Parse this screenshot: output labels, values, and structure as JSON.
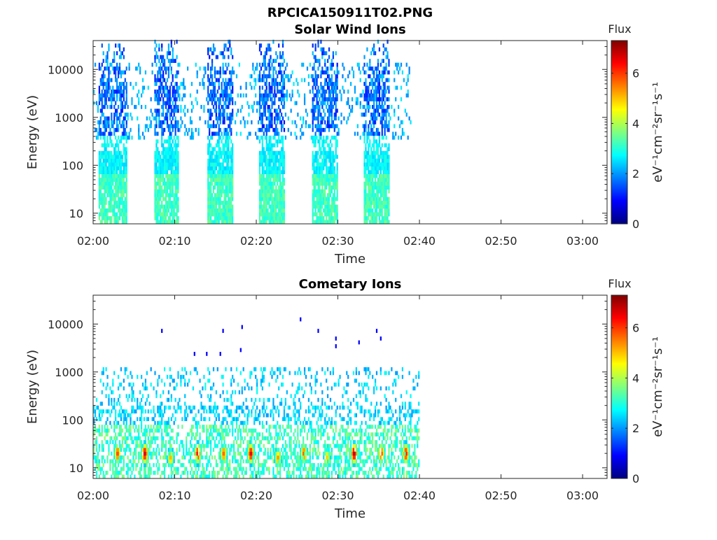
{
  "figure": {
    "title": "RPCICA150911T02.PNG"
  },
  "colormap": {
    "name": "jet",
    "stops": [
      "#00007f",
      "#0000ff",
      "#007fff",
      "#00ffff",
      "#7fff7f",
      "#ffff00",
      "#ff7f00",
      "#ff0000",
      "#7f0000"
    ]
  },
  "chart_data": [
    {
      "type": "heatmap",
      "title": "Solar Wind Ions",
      "xlabel": "Time",
      "ylabel": "Energy (eV)",
      "x_range": [
        "02:00",
        "03:03"
      ],
      "x_ticks": [
        "02:00",
        "02:10",
        "02:20",
        "02:30",
        "02:40",
        "02:50",
        "03:00"
      ],
      "y_scale": "log",
      "y_range": [
        6,
        40000
      ],
      "y_ticks": [
        "10",
        "100",
        "1000",
        "10000"
      ],
      "colorbar": {
        "label": "Flux",
        "unit": "eV⁻¹cm⁻²sr⁻¹s⁻¹",
        "range": [
          0,
          7.3
        ],
        "ticks": [
          "0",
          "2",
          "4",
          "6"
        ]
      },
      "data_extent_time": [
        "02:00",
        "02:40"
      ],
      "bursts": [
        {
          "start": "02:00:40",
          "end": "02:04:10",
          "energy_peak_eV": 5000,
          "flux_peak": 2.2
        },
        {
          "start": "02:07:30",
          "end": "02:10:30",
          "energy_peak_eV": 5000,
          "flux_peak": 2.2
        },
        {
          "start": "02:14:00",
          "end": "02:17:10",
          "energy_peak_eV": 5000,
          "flux_peak": 2.2
        },
        {
          "start": "02:20:20",
          "end": "02:23:30",
          "energy_peak_eV": 5000,
          "flux_peak": 2.2
        },
        {
          "start": "02:26:50",
          "end": "02:30:00",
          "energy_peak_eV": 5000,
          "flux_peak": 2.2
        },
        {
          "start": "02:33:10",
          "end": "02:36:20",
          "energy_peak_eV": 5000,
          "flux_peak": 2.2
        }
      ],
      "grid": false
    },
    {
      "type": "heatmap",
      "title": "Cometary Ions",
      "xlabel": "Time",
      "ylabel": "Energy (eV)",
      "x_range": [
        "02:00",
        "03:03"
      ],
      "x_ticks": [
        "02:00",
        "02:10",
        "02:20",
        "02:30",
        "02:40",
        "02:50",
        "03:00"
      ],
      "y_scale": "log",
      "y_range": [
        6,
        40000
      ],
      "y_ticks": [
        "10",
        "100",
        "1000",
        "10000"
      ],
      "colorbar": {
        "label": "Flux",
        "unit": "eV⁻¹cm⁻²sr⁻¹s⁻¹",
        "range": [
          0,
          7.3
        ],
        "ticks": [
          "0",
          "2",
          "4",
          "6"
        ]
      },
      "data_extent_time": [
        "02:00",
        "02:40"
      ],
      "hotspots": [
        {
          "time": "02:03:00",
          "energy_eV": 20,
          "flux": 6.0
        },
        {
          "time": "02:06:20",
          "energy_eV": 20,
          "flux": 6.8
        },
        {
          "time": "02:09:30",
          "energy_eV": 16,
          "flux": 5.2
        },
        {
          "time": "02:12:50",
          "energy_eV": 20,
          "flux": 6.6
        },
        {
          "time": "02:16:00",
          "energy_eV": 20,
          "flux": 5.8
        },
        {
          "time": "02:19:20",
          "energy_eV": 20,
          "flux": 6.7
        },
        {
          "time": "02:22:40",
          "energy_eV": 16,
          "flux": 5.4
        },
        {
          "time": "02:25:50",
          "energy_eV": 20,
          "flux": 5.9
        },
        {
          "time": "02:28:40",
          "energy_eV": 16,
          "flux": 5.0
        },
        {
          "time": "02:32:00",
          "energy_eV": 20,
          "flux": 7.0
        },
        {
          "time": "02:35:20",
          "energy_eV": 20,
          "flux": 6.1
        },
        {
          "time": "02:38:20",
          "energy_eV": 20,
          "flux": 6.5
        }
      ],
      "grid": false
    }
  ]
}
